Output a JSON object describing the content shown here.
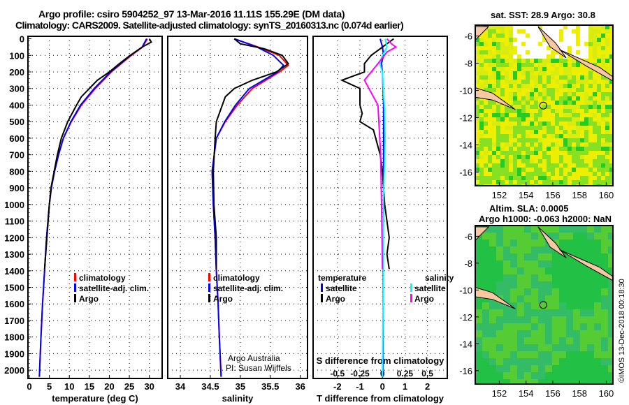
{
  "title_line1": "Argo profile: csiro 5904252_97 13-Mar-2016 11.11S 155.29E (DM data)",
  "title_line2": "Climatology: CARS2009. Satellite-adjusted climatology: synTS_20160313.nc (0.074d earlier)",
  "credit1": "Argo Australia",
  "credit2": "PI: Susan Wijffels",
  "watermark": "©IMOS 13-Dec-2018 00:18:30",
  "colors": {
    "clim": "#ff0000",
    "sat": "#0000ff",
    "argo": "#000000",
    "sat_s": "#00ffff",
    "argo_s": "#ff00ff"
  },
  "chart_data": [
    {
      "type": "line",
      "xlabel": "temperature (deg C)",
      "ylabel": "depth",
      "xlim": [
        -0.35,
        33.2
      ],
      "ylim": [
        2050,
        -15
      ],
      "xticks": [
        "0",
        "5",
        "10",
        "15",
        "20",
        "25",
        "30"
      ],
      "xtickvals": [
        0,
        5,
        10,
        15,
        20,
        25,
        30
      ],
      "yticks": [
        "0",
        "100",
        "200",
        "300",
        "400",
        "500",
        "600",
        "700",
        "800",
        "900",
        "1000",
        "1100",
        "1200",
        "1300",
        "1400",
        "1500",
        "1600",
        "1700",
        "1800",
        "1900",
        "2000"
      ],
      "legend": [
        "climatology",
        "satellite-adj. clim.",
        "Argo"
      ],
      "series": [
        {
          "name": "climatology",
          "color": "#ff0000",
          "depth": [
            0,
            50,
            100,
            150,
            200,
            300,
            400,
            500,
            600,
            700,
            800,
            900,
            1000,
            1200,
            1400,
            1600,
            1800,
            2040
          ],
          "values": [
            29.5,
            28.3,
            25.5,
            23,
            20.5,
            16.5,
            13,
            10.5,
            8.5,
            7.3,
            6.3,
            5.5,
            5,
            4.3,
            3.8,
            3.3,
            2.9,
            2.5
          ]
        },
        {
          "name": "satellite-adj. clim.",
          "color": "#0000ff",
          "depth": [
            0,
            50,
            100,
            150,
            200,
            300,
            400,
            500,
            600,
            700,
            800,
            900,
            1000,
            1200,
            1400,
            1600,
            1800,
            2040
          ],
          "values": [
            29.3,
            28.2,
            25.3,
            22.8,
            20.3,
            16.2,
            12.8,
            10.4,
            8.5,
            7.3,
            6.3,
            5.5,
            5,
            4.3,
            3.8,
            3.3,
            2.9,
            2.5
          ]
        },
        {
          "name": "Argo",
          "color": "#000000",
          "depth": [
            0,
            20,
            50,
            100,
            150,
            200,
            250,
            300,
            350,
            400,
            500,
            600,
            700,
            800,
            900,
            1000,
            1200,
            1390
          ],
          "values": [
            30,
            30.5,
            28.2,
            25.2,
            22.5,
            20,
            17,
            15,
            13,
            11.8,
            9.6,
            8,
            7,
            6.2,
            5.4,
            5,
            4.4,
            3.8
          ]
        }
      ]
    },
    {
      "type": "line",
      "xlabel": "salinity",
      "ylabel": "depth",
      "xlim": [
        33.79,
        36.12
      ],
      "ylim": [
        2050,
        -15
      ],
      "xticks": [
        "34",
        "34.5",
        "35",
        "35.5",
        "36"
      ],
      "xtickvals": [
        34,
        34.5,
        35,
        35.5,
        36
      ],
      "legend": [
        "climatology",
        "satellite-adj. clim.",
        "Argo"
      ],
      "series": [
        {
          "name": "climatology",
          "color": "#ff0000",
          "depth": [
            0,
            50,
            100,
            160,
            200,
            300,
            400,
            500,
            600,
            800,
            1000,
            1200,
            1400,
            1600,
            1800,
            2040
          ],
          "values": [
            34.9,
            35.3,
            35.65,
            35.8,
            35.65,
            35.2,
            34.95,
            34.75,
            34.6,
            34.53,
            34.55,
            34.58,
            34.6,
            34.63,
            34.65,
            34.68
          ]
        },
        {
          "name": "satellite-adj. clim.",
          "color": "#0000ff",
          "depth": [
            0,
            50,
            100,
            160,
            200,
            300,
            400,
            500,
            600,
            800,
            1000,
            1200,
            1400,
            1600,
            1800,
            2040
          ],
          "values": [
            34.9,
            35.28,
            35.55,
            35.72,
            35.62,
            35.15,
            34.92,
            34.74,
            34.6,
            34.53,
            34.55,
            34.58,
            34.6,
            34.63,
            34.65,
            34.68
          ]
        },
        {
          "name": "Argo",
          "color": "#000000",
          "depth": [
            0,
            30,
            60,
            100,
            150,
            200,
            250,
            300,
            350,
            400,
            500,
            600,
            800,
            1000,
            1200,
            1390
          ],
          "values": [
            34.9,
            35.0,
            35.4,
            35.7,
            35.8,
            35.6,
            35.2,
            34.9,
            34.75,
            34.7,
            34.6,
            34.58,
            34.55,
            34.56,
            34.6,
            34.6
          ]
        }
      ]
    },
    {
      "type": "line",
      "xlabel": "T difference from climatology",
      "xlabel2": "S difference from climatology",
      "xlim": [
        -3.08,
        2.88
      ],
      "xlim2": [
        -0.77,
        0.72
      ],
      "ylim": [
        2050,
        -15
      ],
      "xticks": [
        "-2",
        "-1",
        "0",
        "1",
        "2"
      ],
      "xtickvals": [
        -2,
        -1,
        0,
        1,
        2
      ],
      "xticks2": [
        "-0.5",
        "-0.25",
        "0",
        "0.25",
        "0.5"
      ],
      "xtickvals2": [
        -0.5,
        -0.25,
        0,
        0.25,
        0.5
      ],
      "legend_t_title": "temperature",
      "legend_s_title": "salinity",
      "legend_t": [
        "satellite",
        "Argo"
      ],
      "legend_s": [
        "satellite",
        "Argo"
      ],
      "series": [
        {
          "name": "T satellite",
          "axis": "T",
          "color": "#0000ff",
          "depth": [
            0,
            50,
            100,
            150,
            200,
            400,
            600,
            800,
            1000,
            1400,
            2040
          ],
          "values": [
            -0.1,
            0,
            0.05,
            -0.05,
            0,
            0.05,
            0.05,
            0.05,
            0.05,
            0.03,
            0.02
          ]
        },
        {
          "name": "T Argo",
          "axis": "T",
          "color": "#000000",
          "depth": [
            0,
            50,
            100,
            150,
            200,
            250,
            300,
            400,
            450,
            500,
            550,
            600,
            700,
            800,
            1000,
            1200,
            1300,
            1390
          ],
          "values": [
            0.5,
            0,
            -0.5,
            -0.8,
            -0.8,
            -1.8,
            -1,
            -1,
            -0.9,
            -1,
            -0.4,
            -0.3,
            -0.1,
            0,
            0.1,
            0.3,
            0.2,
            0.3
          ]
        },
        {
          "name": "S satellite",
          "axis": "S",
          "color": "#00ffff",
          "depth": [
            0,
            50,
            100,
            150,
            200,
            400,
            600,
            800,
            1000,
            1400,
            2040
          ],
          "values": [
            0.03,
            0.05,
            0,
            -0.03,
            0,
            0.02,
            0.03,
            0.02,
            0.01,
            0.01,
            0
          ]
        },
        {
          "name": "S Argo",
          "axis": "S",
          "color": "#ff00ff",
          "depth": [
            0,
            30,
            50,
            80,
            150,
            250,
            300,
            400,
            500,
            700,
            1000,
            1390
          ],
          "values": [
            0.05,
            0.1,
            0.15,
            0.05,
            -0.05,
            -0.2,
            -0.15,
            -0.05,
            -0.04,
            -0.02,
            -0.01,
            0
          ]
        }
      ]
    },
    {
      "type": "heatmap",
      "title": "sat. SST: 28.9 Argo: 30.8",
      "xlim": [
        150.2,
        160.5
      ],
      "ylim": [
        -5.2,
        -17
      ],
      "xticks": [
        "152",
        "154",
        "156",
        "158",
        "160"
      ],
      "xtickvals": [
        152,
        154,
        156,
        158,
        160
      ],
      "yticks": [
        "-6",
        "-8",
        "-10",
        "-12",
        "-14",
        "-16"
      ],
      "ytickvals": [
        -6,
        -8,
        -10,
        -12,
        -14,
        -16
      ],
      "marker": [
        155.29,
        -11.11
      ]
    },
    {
      "type": "heatmap",
      "title": "Altim. SLA: 0.0005",
      "subtitle": "Argo h1000: -0.063 h2000: NaN",
      "xlim": [
        150.2,
        160.5
      ],
      "ylim": [
        -5.2,
        -17
      ],
      "xticks": [
        "152",
        "154",
        "156",
        "158",
        "160"
      ],
      "xtickvals": [
        152,
        154,
        156,
        158,
        160
      ],
      "yticks": [
        "-6",
        "-8",
        "-10",
        "-12",
        "-14",
        "-16"
      ],
      "ytickvals": [
        -6,
        -8,
        -10,
        -12,
        -14,
        -16
      ],
      "marker": [
        155.29,
        -11.11
      ]
    }
  ]
}
